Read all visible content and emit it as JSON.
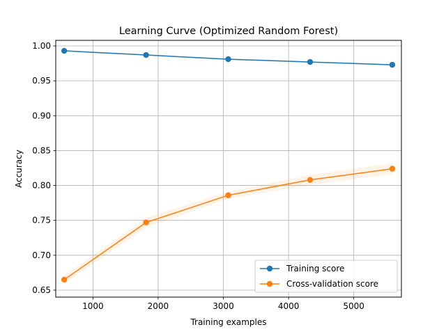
{
  "chart_data": {
    "type": "line",
    "title": "Learning Curve (Optimized Random Forest)",
    "xlabel": "Training examples",
    "ylabel": "Accuracy",
    "xlim": [
      430,
      5730
    ],
    "ylim": [
      0.64,
      1.008
    ],
    "xticks": [
      1000,
      2000,
      3000,
      4000,
      5000
    ],
    "xtick_labels": [
      "1000",
      "2000",
      "3000",
      "4000",
      "5000"
    ],
    "yticks": [
      0.65,
      0.7,
      0.75,
      0.8,
      0.85,
      0.9,
      0.95,
      1.0
    ],
    "ytick_labels": [
      "0.65",
      "0.70",
      "0.75",
      "0.80",
      "0.85",
      "0.90",
      "0.95",
      "1.00"
    ],
    "grid": true,
    "legend_position": "lower-right",
    "x": [
      560,
      1815,
      3075,
      4330,
      5590
    ],
    "series": [
      {
        "name": "Training score",
        "color": "#1f77b4",
        "values": [
          0.993,
          0.987,
          0.981,
          0.977,
          0.973
        ],
        "band": [
          0.001,
          0.001,
          0.001,
          0.001,
          0.001
        ]
      },
      {
        "name": "Cross-validation score",
        "color": "#ff7f0e",
        "values": [
          0.665,
          0.747,
          0.786,
          0.808,
          0.824
        ],
        "band": [
          0.006,
          0.007,
          0.005,
          0.007,
          0.008
        ]
      }
    ]
  }
}
